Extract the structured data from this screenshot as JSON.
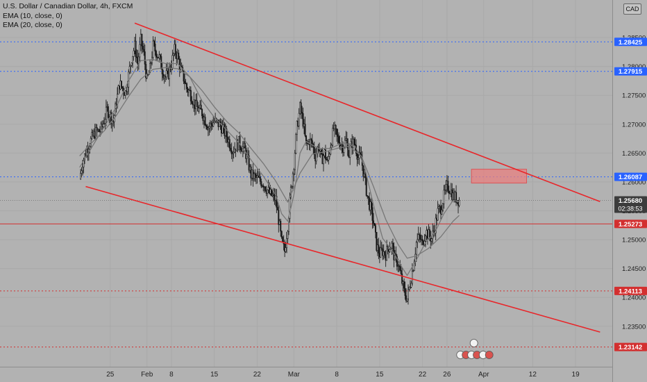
{
  "legend": {
    "symbol": "U.S. Dollar / Canadian Dollar, 4h, FXCM",
    "ema1": "EMA (10, close, 0)",
    "ema2": "EMA (20, close, 0)"
  },
  "currency": "CAD",
  "colors": {
    "background": "#b2b2b2",
    "trendline": "#e8262a",
    "blue_level": "#2962ff",
    "red_level": "#d32f2f",
    "ema": "#777777",
    "candle": "#1a1a1a",
    "zone": "#e88080"
  },
  "chart_data": {
    "type": "candlestick",
    "y_range": [
      1.228,
      1.2915
    ],
    "x_range_days": [
      -52,
      48
    ],
    "y_ticks": [
      {
        "value": 1.285,
        "label": "1.28500"
      },
      {
        "value": 1.28,
        "label": "1.28000"
      },
      {
        "value": 1.275,
        "label": "1.27500"
      },
      {
        "value": 1.27,
        "label": "1.27000"
      },
      {
        "value": 1.265,
        "label": "1.26500"
      },
      {
        "value": 1.26,
        "label": "1.26000"
      },
      {
        "value": 1.255,
        "label": "1.25500"
      },
      {
        "value": 1.25,
        "label": "1.25000"
      },
      {
        "value": 1.245,
        "label": "1.24500"
      },
      {
        "value": 1.24,
        "label": "1.24000"
      },
      {
        "value": 1.235,
        "label": "1.23500"
      }
    ],
    "x_ticks": [
      {
        "day": -34,
        "label": "25"
      },
      {
        "day": -28,
        "label": "Feb"
      },
      {
        "day": -24,
        "label": "8"
      },
      {
        "day": -17,
        "label": "15"
      },
      {
        "day": -10,
        "label": "22"
      },
      {
        "day": -4,
        "label": "Mar"
      },
      {
        "day": 3,
        "label": "8"
      },
      {
        "day": 10,
        "label": "15"
      },
      {
        "day": 17,
        "label": "22"
      },
      {
        "day": 21,
        "label": "26"
      },
      {
        "day": 27,
        "label": "Apr"
      },
      {
        "day": 35,
        "label": "12"
      },
      {
        "day": 42,
        "label": "19"
      }
    ],
    "levels": [
      {
        "value": 1.28425,
        "label": "1.28425",
        "style": "blue-dotted"
      },
      {
        "value": 1.27915,
        "label": "1.27915",
        "style": "blue-dotted"
      },
      {
        "value": 1.26087,
        "label": "1.26087",
        "style": "blue-dotted"
      },
      {
        "value": 1.2568,
        "label": "1.25680",
        "sub": "02:38:53",
        "style": "last-price"
      },
      {
        "value": 1.25273,
        "label": "1.25273",
        "style": "red-solid"
      },
      {
        "value": 1.24113,
        "label": "1.24113",
        "style": "red-dotted"
      },
      {
        "value": 1.23142,
        "label": "1.23142",
        "style": "red-dotted"
      }
    ],
    "trendlines": [
      {
        "from": [
          -30,
          1.2875
        ],
        "to": [
          46,
          1.2566
        ]
      },
      {
        "from": [
          -38,
          1.2592
        ],
        "to": [
          46,
          1.234
        ]
      }
    ],
    "zone": {
      "x": [
        25,
        34
      ],
      "y": [
        1.2598,
        1.2622
      ]
    },
    "price_path": [
      [
        -39,
        1.2605
      ],
      [
        -38.5,
        1.2635
      ],
      [
        -37.5,
        1.2665
      ],
      [
        -36.5,
        1.2685
      ],
      [
        -35.5,
        1.269
      ],
      [
        -34.5,
        1.2725
      ],
      [
        -33.5,
        1.2705
      ],
      [
        -32.5,
        1.277
      ],
      [
        -31.5,
        1.2755
      ],
      [
        -30.5,
        1.2815
      ],
      [
        -30,
        1.2835
      ],
      [
        -29.5,
        1.2805
      ],
      [
        -29,
        1.2845
      ],
      [
        -28.5,
        1.282
      ],
      [
        -28,
        1.2775
      ],
      [
        -27.5,
        1.2795
      ],
      [
        -27,
        1.2835
      ],
      [
        -26.5,
        1.2825
      ],
      [
        -26,
        1.2815
      ],
      [
        -25.5,
        1.2795
      ],
      [
        -25,
        1.2782
      ],
      [
        -24.5,
        1.2788
      ],
      [
        -24,
        1.2805
      ],
      [
        -23.5,
        1.2828
      ],
      [
        -23,
        1.2818
      ],
      [
        -22.5,
        1.2795
      ],
      [
        -22,
        1.278
      ],
      [
        -21.5,
        1.2762
      ],
      [
        -21,
        1.2755
      ],
      [
        -20,
        1.273
      ],
      [
        -19,
        1.272
      ],
      [
        -18,
        1.2695
      ],
      [
        -17,
        1.2705
      ],
      [
        -16,
        1.2698
      ],
      [
        -15,
        1.268
      ],
      [
        -14,
        1.2655
      ],
      [
        -13,
        1.2668
      ],
      [
        -12,
        1.2655
      ],
      [
        -11.5,
        1.2635
      ],
      [
        -11,
        1.2612
      ],
      [
        -10,
        1.2605
      ],
      [
        -9,
        1.2598
      ],
      [
        -8,
        1.258
      ],
      [
        -7,
        1.257
      ],
      [
        -6.5,
        1.2535
      ],
      [
        -6,
        1.2495
      ],
      [
        -5.5,
        1.248
      ],
      [
        -5,
        1.2525
      ],
      [
        -4.5,
        1.2585
      ],
      [
        -4,
        1.2632
      ],
      [
        -3.5,
        1.2695
      ],
      [
        -3,
        1.2728
      ],
      [
        -2.5,
        1.2705
      ],
      [
        -2,
        1.2662
      ],
      [
        -1.5,
        1.2672
      ],
      [
        -1,
        1.2665
      ],
      [
        -0.5,
        1.2645
      ],
      [
        0,
        1.2662
      ],
      [
        0.5,
        1.2638
      ],
      [
        1,
        1.265
      ],
      [
        1.5,
        1.2632
      ],
      [
        2,
        1.2665
      ],
      [
        2.5,
        1.2692
      ],
      [
        3,
        1.2678
      ],
      [
        3.5,
        1.2668
      ],
      [
        4,
        1.2662
      ],
      [
        4.5,
        1.2672
      ],
      [
        5,
        1.2648
      ],
      [
        5.5,
        1.2668
      ],
      [
        6,
        1.2665
      ],
      [
        6.5,
        1.2642
      ],
      [
        7,
        1.264
      ],
      [
        7.5,
        1.2608
      ],
      [
        8,
        1.2575
      ],
      [
        8.5,
        1.2555
      ],
      [
        9,
        1.253
      ],
      [
        9.5,
        1.249
      ],
      [
        10,
        1.2475
      ],
      [
        10.5,
        1.248
      ],
      [
        11,
        1.2475
      ],
      [
        11.5,
        1.2488
      ],
      [
        12,
        1.249
      ],
      [
        12.5,
        1.2465
      ],
      [
        13,
        1.246
      ],
      [
        13.5,
        1.2435
      ],
      [
        14,
        1.241
      ],
      [
        14.5,
        1.2398
      ],
      [
        15,
        1.2425
      ],
      [
        15.5,
        1.2455
      ],
      [
        16,
        1.2495
      ],
      [
        16.5,
        1.2505
      ],
      [
        17,
        1.2492
      ],
      [
        17.5,
        1.2515
      ],
      [
        18,
        1.2508
      ],
      [
        18.5,
        1.2502
      ],
      [
        19,
        1.2522
      ],
      [
        19.5,
        1.2548
      ],
      [
        20,
        1.2555
      ],
      [
        20.5,
        1.2575
      ],
      [
        21,
        1.2592
      ],
      [
        21.5,
        1.2588
      ],
      [
        22,
        1.2575
      ],
      [
        22.5,
        1.2572
      ],
      [
        23,
        1.2568
      ]
    ],
    "ema10": [
      [
        -39,
        1.2625
      ],
      [
        -37,
        1.266
      ],
      [
        -35,
        1.2695
      ],
      [
        -33,
        1.273
      ],
      [
        -31,
        1.2775
      ],
      [
        -29,
        1.281
      ],
      [
        -27,
        1.2812
      ],
      [
        -25,
        1.2805
      ],
      [
        -23,
        1.2805
      ],
      [
        -21,
        1.2782
      ],
      [
        -19,
        1.274
      ],
      [
        -17,
        1.2712
      ],
      [
        -15,
        1.269
      ],
      [
        -13,
        1.2668
      ],
      [
        -11,
        1.2638
      ],
      [
        -9,
        1.261
      ],
      [
        -7,
        1.2578
      ],
      [
        -6,
        1.2545
      ],
      [
        -5,
        1.2532
      ],
      [
        -4,
        1.2578
      ],
      [
        -3,
        1.265
      ],
      [
        -2,
        1.267
      ],
      [
        0,
        1.2658
      ],
      [
        2,
        1.2658
      ],
      [
        4,
        1.2668
      ],
      [
        6,
        1.2662
      ],
      [
        7.5,
        1.2628
      ],
      [
        9,
        1.256
      ],
      [
        10.5,
        1.2502
      ],
      [
        12,
        1.2482
      ],
      [
        13.5,
        1.2455
      ],
      [
        14.5,
        1.2438
      ],
      [
        16,
        1.2465
      ],
      [
        17.5,
        1.2495
      ],
      [
        19,
        1.2512
      ],
      [
        20.5,
        1.2545
      ],
      [
        22,
        1.2568
      ],
      [
        23,
        1.2566
      ]
    ],
    "ema20": [
      [
        -39,
        1.2645
      ],
      [
        -37,
        1.2668
      ],
      [
        -35,
        1.2688
      ],
      [
        -33,
        1.2715
      ],
      [
        -31,
        1.2748
      ],
      [
        -29,
        1.2778
      ],
      [
        -27,
        1.2795
      ],
      [
        -25,
        1.2798
      ],
      [
        -23,
        1.2796
      ],
      [
        -21,
        1.2782
      ],
      [
        -19,
        1.2758
      ],
      [
        -17,
        1.273
      ],
      [
        -15,
        1.2705
      ],
      [
        -13,
        1.2685
      ],
      [
        -11,
        1.2658
      ],
      [
        -9,
        1.2632
      ],
      [
        -7,
        1.2602
      ],
      [
        -5,
        1.2565
      ],
      [
        -3,
        1.2615
      ],
      [
        -1,
        1.2648
      ],
      [
        1,
        1.2652
      ],
      [
        3,
        1.2658
      ],
      [
        5,
        1.2662
      ],
      [
        7,
        1.2645
      ],
      [
        9,
        1.2592
      ],
      [
        11,
        1.2535
      ],
      [
        13,
        1.2492
      ],
      [
        14.5,
        1.2468
      ],
      [
        16,
        1.2472
      ],
      [
        18,
        1.2485
      ],
      [
        20,
        1.2505
      ],
      [
        22,
        1.2532
      ],
      [
        23,
        1.2542
      ]
    ]
  }
}
